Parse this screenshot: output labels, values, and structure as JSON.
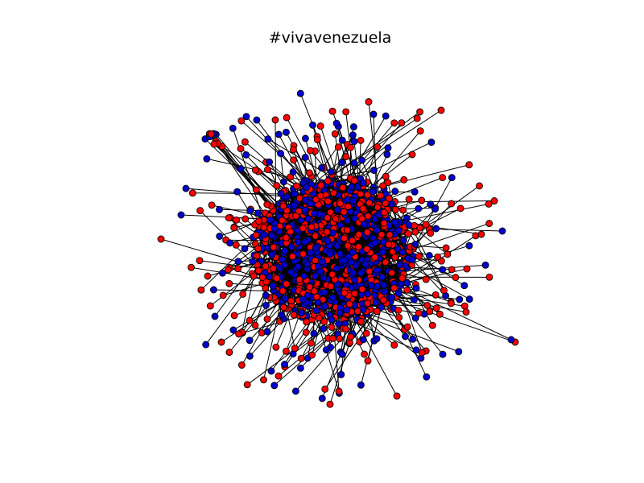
{
  "figure": {
    "title": "#vivavenezuela"
  },
  "graph": {
    "type": "network-graph",
    "layout": "force-directed",
    "node_colors": {
      "red": "#ff0000",
      "blue": "#0000cc"
    },
    "edge_color": "#000000",
    "node_outline_color": "#000000",
    "axes_visible": false
  }
}
